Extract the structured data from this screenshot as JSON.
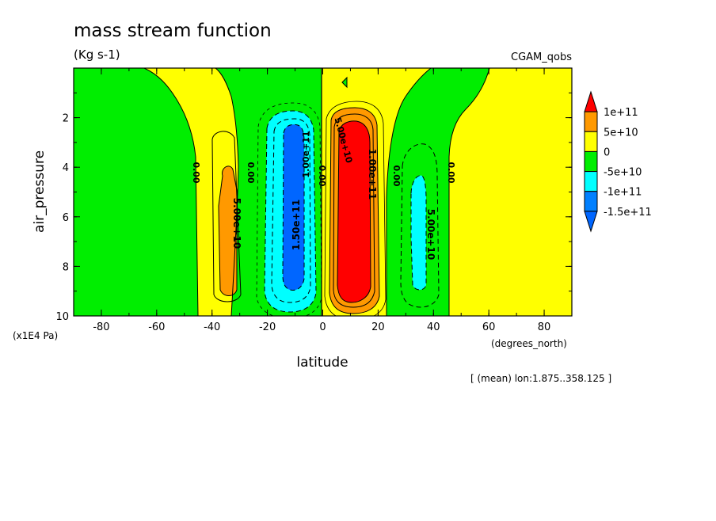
{
  "title": "mass stream function",
  "units": "(Kg s-1)",
  "dataset": "CGAM_qobs",
  "footnote": "[ (mean) lon:1.875..358.125 ]",
  "chart_data": {
    "type": "contour",
    "xlabel": "latitude",
    "x_units": "(degrees_north)",
    "ylabel": "air_pressure",
    "y_units": "(x1E4 Pa)",
    "xlim": [
      -90,
      90
    ],
    "ylim": [
      10,
      0
    ],
    "x_ticks": [
      -80,
      -60,
      -40,
      -20,
      0,
      20,
      40,
      60,
      80
    ],
    "y_ticks": [
      2,
      4,
      6,
      8,
      10
    ],
    "colorbar": {
      "levels": [
        "1e+11",
        "5e+10",
        "0",
        "-5e+10",
        "-1e+11",
        "-1.5e+11"
      ],
      "colors": [
        "#ff0000",
        "#ff9900",
        "#ffff00",
        "#00ee00",
        "#00ffff",
        "#0080ff",
        "#0066ff"
      ]
    },
    "contour_labels": [
      "0.00",
      "0.00",
      "5.00e+10",
      "1.50e+11",
      "1.00e+11",
      "1.00e+11",
      "5.00e+10",
      "5.00e+10",
      "0.00",
      "0.00",
      "0.00"
    ]
  }
}
